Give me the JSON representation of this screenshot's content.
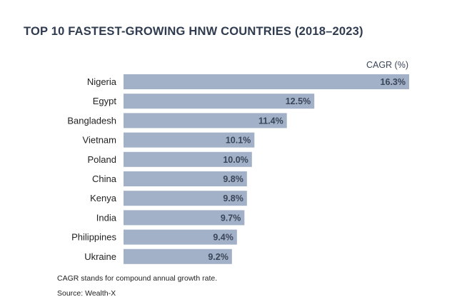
{
  "chart_data": {
    "type": "bar",
    "orientation": "horizontal",
    "title": "TOP 10 FASTEST-GROWING HNW COUNTRIES (2018–2023)",
    "value_label": "CAGR (%)",
    "categories": [
      "Nigeria",
      "Egypt",
      "Bangladesh",
      "Vietnam",
      "Poland",
      "China",
      "Kenya",
      "India",
      "Philippines",
      "Ukraine"
    ],
    "values": [
      16.3,
      12.5,
      11.4,
      10.1,
      10.0,
      9.8,
      9.8,
      9.7,
      9.4,
      9.2
    ],
    "value_labels": [
      "16.3%",
      "12.5%",
      "11.4%",
      "10.1%",
      "10.0%",
      "9.8%",
      "9.8%",
      "9.7%",
      "9.4%",
      "9.2%"
    ],
    "bar_color": "#a3b1c8",
    "grid": false
  },
  "footnote": "CAGR stands for compound annual growth rate.",
  "source": "Source: Wealth-X"
}
